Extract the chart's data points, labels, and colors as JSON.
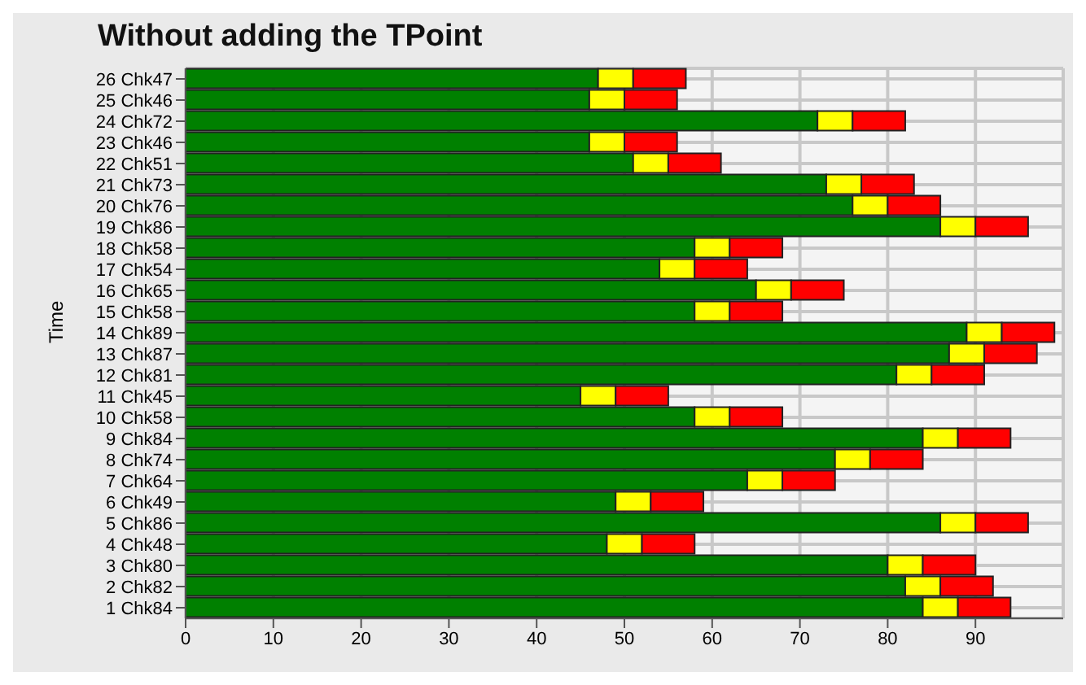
{
  "chart_data": {
    "type": "bar",
    "orientation": "horizontal",
    "stacked": true,
    "title": "Without adding the TPoint",
    "ylabel": "Time",
    "categories": [
      "26 Chk47",
      "25 Chk46",
      "24 Chk72",
      "23 Chk46",
      "22 Chk51",
      "21 Chk73",
      "20 Chk76",
      "19 Chk86",
      "18 Chk58",
      "17 Chk54",
      "16 Chk65",
      "15 Chk58",
      "14 Chk89",
      "13 Chk87",
      "12 Chk81",
      "11 Chk45",
      "10 Chk58",
      "9 Chk84",
      "8 Chk74",
      "7 Chk64",
      "6 Chk49",
      "5 Chk86",
      "4 Chk48",
      "3 Chk80",
      "2 Chk82",
      "1 Chk84"
    ],
    "series": [
      {
        "color": "#008000",
        "values": [
          47,
          46,
          72,
          46,
          51,
          73,
          76,
          86,
          58,
          54,
          65,
          58,
          89,
          87,
          81,
          45,
          58,
          84,
          74,
          64,
          49,
          86,
          48,
          80,
          82,
          84
        ]
      },
      {
        "color": "#ffff00",
        "values": [
          4,
          4,
          4,
          4,
          4,
          4,
          4,
          4,
          4,
          4,
          4,
          4,
          4,
          4,
          4,
          4,
          4,
          4,
          4,
          4,
          4,
          4,
          4,
          4,
          4,
          4
        ]
      },
      {
        "color": "#ff0000",
        "values": [
          6,
          6,
          6,
          6,
          6,
          6,
          6,
          6,
          6,
          6,
          6,
          6,
          6,
          6,
          6,
          6,
          6,
          6,
          6,
          6,
          6,
          6,
          6,
          6,
          6,
          6
        ]
      }
    ],
    "xlim": [
      0,
      100
    ],
    "xticks": [
      0,
      10,
      20,
      30,
      40,
      50,
      60,
      70,
      80,
      90
    ],
    "grid": true,
    "legend": false
  }
}
